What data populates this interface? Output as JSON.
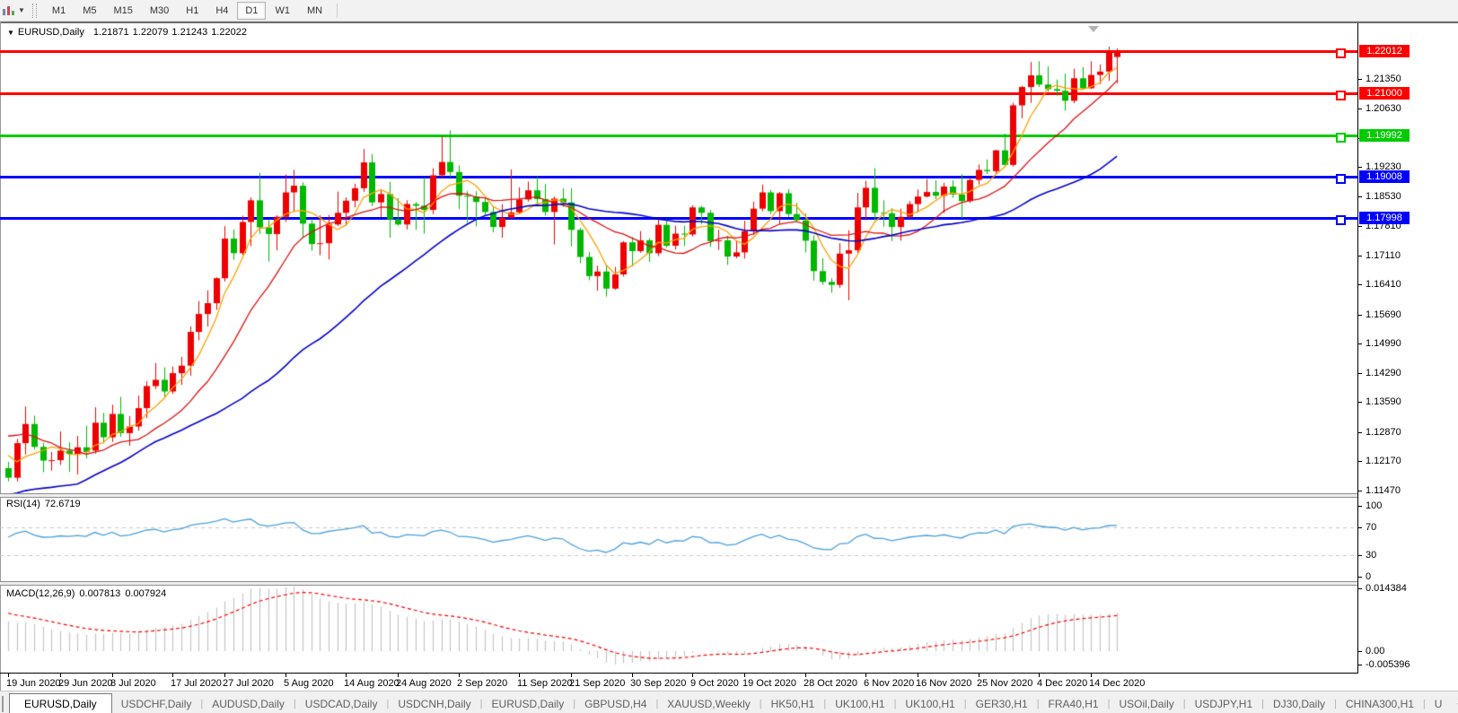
{
  "toolbar": {
    "chart_icon": "chart-icon",
    "timeframes": [
      {
        "label": "M1",
        "active": false
      },
      {
        "label": "M5",
        "active": false
      },
      {
        "label": "M15",
        "active": false
      },
      {
        "label": "M30",
        "active": false
      },
      {
        "label": "H1",
        "active": false
      },
      {
        "label": "H4",
        "active": false
      },
      {
        "label": "D1",
        "active": true
      },
      {
        "label": "W1",
        "active": false
      },
      {
        "label": "MN",
        "active": false
      }
    ]
  },
  "title": {
    "arrow": "▼",
    "symbol": "EURUSD,Daily",
    "open": "1.21871",
    "high": "1.22079",
    "low": "1.21243",
    "close": "1.22022"
  },
  "chart_data": {
    "type": "candlestick",
    "symbol": "EURUSD",
    "timeframe": "Daily",
    "last_ohlc": {
      "open": 1.21871,
      "high": 1.22079,
      "low": 1.21243,
      "close": 1.22022
    },
    "colors": {
      "bull": "#ee0000",
      "bear": "#00b800",
      "ma_fast": "#ffa000",
      "ma_mid": "#dd1111",
      "ma_slow": "#0000cc",
      "rsi": "#4aa0dd",
      "macd_hist": "#c4c4c4",
      "macd_signal": "#ff0000",
      "level_dash": "#c8c8c8",
      "hline_red": "#ff0000",
      "hline_green": "#00cc00",
      "hline_blue": "#0000ff"
    },
    "hlines": [
      {
        "name": "resistance-upper",
        "price": "1.22012",
        "value": 1.22012,
        "color": "#ff0000"
      },
      {
        "name": "resistance-lower",
        "price": "1.21000",
        "value": 1.21,
        "color": "#ff0000"
      },
      {
        "name": "pivot-green",
        "price": "1.19992",
        "value": 1.19992,
        "color": "#00cc00"
      },
      {
        "name": "support-upper",
        "price": "1.19008",
        "value": 1.19008,
        "color": "#0000ff"
      },
      {
        "name": "support-lower",
        "price": "1.17998",
        "value": 1.17998,
        "color": "#0000ff"
      }
    ],
    "price_ticks": [
      "1.21350",
      "1.20630",
      "1.19930",
      "1.19230",
      "1.18530",
      "1.17810",
      "1.17110",
      "1.16410",
      "1.15690",
      "1.14990",
      "1.14290",
      "1.13590",
      "1.12870",
      "1.12170",
      "1.11470"
    ],
    "date_labels": [
      {
        "text": "19 Jun 2020",
        "index": 0
      },
      {
        "text": "29 Jun 2020",
        "index": 6
      },
      {
        "text": "8 Jul 2020",
        "index": 12
      },
      {
        "text": "17 Jul 2020",
        "index": 19
      },
      {
        "text": "27 Jul 2020",
        "index": 25
      },
      {
        "text": "5 Aug 2020",
        "index": 32
      },
      {
        "text": "14 Aug 2020",
        "index": 39
      },
      {
        "text": "24 Aug 2020",
        "index": 45
      },
      {
        "text": "2 Sep 2020",
        "index": 52
      },
      {
        "text": "11 Sep 2020",
        "index": 59
      },
      {
        "text": "21 Sep 2020",
        "index": 65
      },
      {
        "text": "30 Sep 2020",
        "index": 72
      },
      {
        "text": "9 Oct 2020",
        "index": 79
      },
      {
        "text": "19 Oct 2020",
        "index": 85
      },
      {
        "text": "28 Oct 2020",
        "index": 92
      },
      {
        "text": "6 Nov 2020",
        "index": 99
      },
      {
        "text": "16 Nov 2020",
        "index": 105
      },
      {
        "text": "25 Nov 2020",
        "index": 112
      },
      {
        "text": "4 Dec 2020",
        "index": 119
      },
      {
        "text": "14 Dec 2020",
        "index": 125
      }
    ],
    "candles": [
      [
        1.12,
        1.1215,
        1.1168,
        1.1177
      ],
      [
        1.1177,
        1.127,
        1.1168,
        1.126
      ],
      [
        1.126,
        1.1348,
        1.1233,
        1.1306
      ],
      [
        1.1306,
        1.1326,
        1.1245,
        1.1251
      ],
      [
        1.1251,
        1.1261,
        1.119,
        1.1218
      ],
      [
        1.1218,
        1.1239,
        1.1194,
        1.1219
      ],
      [
        1.1219,
        1.1288,
        1.1208,
        1.1242
      ],
      [
        1.1242,
        1.1262,
        1.1191,
        1.1234
      ],
      [
        1.1234,
        1.1277,
        1.1185,
        1.125
      ],
      [
        1.125,
        1.1302,
        1.1223,
        1.1239
      ],
      [
        1.1242,
        1.1346,
        1.1235,
        1.1309
      ],
      [
        1.1309,
        1.1333,
        1.1259,
        1.1274
      ],
      [
        1.1274,
        1.1352,
        1.1263,
        1.133
      ],
      [
        1.133,
        1.1371,
        1.1275,
        1.1284
      ],
      [
        1.1284,
        1.1325,
        1.1254,
        1.13
      ],
      [
        1.13,
        1.1374,
        1.129,
        1.1344
      ],
      [
        1.1344,
        1.1409,
        1.132,
        1.1397
      ],
      [
        1.1397,
        1.1452,
        1.139,
        1.1412
      ],
      [
        1.1412,
        1.1442,
        1.137,
        1.1384
      ],
      [
        1.1384,
        1.1444,
        1.1378,
        1.1428
      ],
      [
        1.1428,
        1.1467,
        1.14,
        1.1446
      ],
      [
        1.1446,
        1.154,
        1.1422,
        1.1527
      ],
      [
        1.1527,
        1.1601,
        1.1507,
        1.157
      ],
      [
        1.157,
        1.1627,
        1.154,
        1.1596
      ],
      [
        1.1596,
        1.1658,
        1.158,
        1.1656
      ],
      [
        1.1656,
        1.1781,
        1.1648,
        1.1751
      ],
      [
        1.1751,
        1.1773,
        1.17,
        1.1716
      ],
      [
        1.1716,
        1.1806,
        1.1712,
        1.1791
      ],
      [
        1.1791,
        1.185,
        1.1733,
        1.1843
      ],
      [
        1.1843,
        1.1909,
        1.1762,
        1.1778
      ],
      [
        1.1778,
        1.1797,
        1.1696,
        1.1762
      ],
      [
        1.1762,
        1.1807,
        1.1723,
        1.1803
      ],
      [
        1.1803,
        1.1905,
        1.1791,
        1.1862
      ],
      [
        1.1862,
        1.1916,
        1.1817,
        1.1878
      ],
      [
        1.1878,
        1.1886,
        1.1754,
        1.1787
      ],
      [
        1.1787,
        1.1798,
        1.1722,
        1.1738
      ],
      [
        1.1738,
        1.1807,
        1.1711,
        1.174
      ],
      [
        1.174,
        1.1808,
        1.1701,
        1.1785
      ],
      [
        1.1785,
        1.1864,
        1.1781,
        1.1813
      ],
      [
        1.1813,
        1.185,
        1.1782,
        1.1842
      ],
      [
        1.1842,
        1.1883,
        1.1826,
        1.1872
      ],
      [
        1.1872,
        1.1966,
        1.1863,
        1.1934
      ],
      [
        1.1934,
        1.1954,
        1.1829,
        1.1838
      ],
      [
        1.1838,
        1.1869,
        1.1802,
        1.1858
      ],
      [
        1.1858,
        1.1887,
        1.1753,
        1.1797
      ],
      [
        1.1797,
        1.1848,
        1.1782,
        1.1785
      ],
      [
        1.1785,
        1.1843,
        1.1773,
        1.1834
      ],
      [
        1.1834,
        1.1839,
        1.1772,
        1.183
      ],
      [
        1.183,
        1.1898,
        1.1763,
        1.182
      ],
      [
        1.182,
        1.192,
        1.181,
        1.1903
      ],
      [
        1.1903,
        1.1997,
        1.1897,
        1.1935
      ],
      [
        1.1935,
        1.2011,
        1.1898,
        1.1911
      ],
      [
        1.1911,
        1.1927,
        1.1822,
        1.1854
      ],
      [
        1.1854,
        1.1865,
        1.1789,
        1.1852
      ],
      [
        1.1852,
        1.1865,
        1.1781,
        1.1839
      ],
      [
        1.1839,
        1.1849,
        1.1805,
        1.1815
      ],
      [
        1.1815,
        1.1827,
        1.1766,
        1.1779
      ],
      [
        1.1779,
        1.1834,
        1.1753,
        1.1801
      ],
      [
        1.1801,
        1.1917,
        1.1799,
        1.1814
      ],
      [
        1.1814,
        1.1874,
        1.1809,
        1.1845
      ],
      [
        1.1845,
        1.1888,
        1.184,
        1.1867
      ],
      [
        1.1867,
        1.19,
        1.1829,
        1.1846
      ],
      [
        1.1846,
        1.1882,
        1.1806,
        1.1815
      ],
      [
        1.1815,
        1.1852,
        1.1737,
        1.1847
      ],
      [
        1.1847,
        1.1872,
        1.1827,
        1.1838
      ],
      [
        1.1838,
        1.1872,
        1.1732,
        1.1772
      ],
      [
        1.1772,
        1.1777,
        1.1692,
        1.1707
      ],
      [
        1.1707,
        1.1719,
        1.1651,
        1.1661
      ],
      [
        1.1661,
        1.1686,
        1.1626,
        1.1672
      ],
      [
        1.1672,
        1.1688,
        1.1612,
        1.1631
      ],
      [
        1.1631,
        1.1683,
        1.1628,
        1.1665
      ],
      [
        1.1665,
        1.1745,
        1.166,
        1.1742
      ],
      [
        1.1742,
        1.1755,
        1.1684,
        1.1721
      ],
      [
        1.1721,
        1.1769,
        1.1717,
        1.1747
      ],
      [
        1.1747,
        1.1752,
        1.1695,
        1.1716
      ],
      [
        1.1716,
        1.1797,
        1.1709,
        1.1784
      ],
      [
        1.1784,
        1.1799,
        1.1729,
        1.1734
      ],
      [
        1.1734,
        1.1782,
        1.1725,
        1.1763
      ],
      [
        1.1763,
        1.1782,
        1.1733,
        1.1761
      ],
      [
        1.1761,
        1.1831,
        1.1756,
        1.1826
      ],
      [
        1.1826,
        1.183,
        1.1785,
        1.1813
      ],
      [
        1.1813,
        1.182,
        1.1731,
        1.1745
      ],
      [
        1.1745,
        1.1772,
        1.1724,
        1.1747
      ],
      [
        1.1747,
        1.1758,
        1.1688,
        1.1708
      ],
      [
        1.1708,
        1.1747,
        1.1704,
        1.1718
      ],
      [
        1.1718,
        1.1794,
        1.1703,
        1.1769
      ],
      [
        1.1769,
        1.184,
        1.176,
        1.1823
      ],
      [
        1.1823,
        1.1881,
        1.1817,
        1.1862
      ],
      [
        1.1862,
        1.1868,
        1.181,
        1.1817
      ],
      [
        1.1817,
        1.1863,
        1.1786,
        1.186
      ],
      [
        1.186,
        1.187,
        1.1803,
        1.181
      ],
      [
        1.181,
        1.1837,
        1.1793,
        1.1795
      ],
      [
        1.1795,
        1.1811,
        1.1718,
        1.1746
      ],
      [
        1.1746,
        1.1759,
        1.165,
        1.1673
      ],
      [
        1.1673,
        1.1704,
        1.164,
        1.1647
      ],
      [
        1.1647,
        1.1656,
        1.1621,
        1.164
      ],
      [
        1.164,
        1.174,
        1.1633,
        1.1715
      ],
      [
        1.1715,
        1.1771,
        1.1603,
        1.1723
      ],
      [
        1.1723,
        1.1861,
        1.1717,
        1.1826
      ],
      [
        1.1826,
        1.189,
        1.1795,
        1.1873
      ],
      [
        1.1873,
        1.192,
        1.1795,
        1.1813
      ],
      [
        1.1813,
        1.1843,
        1.178,
        1.1812
      ],
      [
        1.1812,
        1.1824,
        1.1745,
        1.1779
      ],
      [
        1.1779,
        1.1823,
        1.1746,
        1.1803
      ],
      [
        1.1803,
        1.1841,
        1.1799,
        1.1834
      ],
      [
        1.1834,
        1.1869,
        1.1814,
        1.1852
      ],
      [
        1.1852,
        1.1894,
        1.185,
        1.1863
      ],
      [
        1.1863,
        1.1891,
        1.1846,
        1.1854
      ],
      [
        1.1854,
        1.1885,
        1.1812,
        1.1876
      ],
      [
        1.1876,
        1.1891,
        1.1849,
        1.1857
      ],
      [
        1.1857,
        1.1906,
        1.18,
        1.1841
      ],
      [
        1.1841,
        1.1895,
        1.1837,
        1.1892
      ],
      [
        1.1892,
        1.1929,
        1.1881,
        1.1916
      ],
      [
        1.1916,
        1.1941,
        1.1906,
        1.1913
      ],
      [
        1.1913,
        1.1964,
        1.1907,
        1.1963
      ],
      [
        1.1963,
        1.2003,
        1.1923,
        1.1928
      ],
      [
        1.1928,
        1.2077,
        1.1924,
        1.2071
      ],
      [
        1.2071,
        1.2118,
        1.204,
        1.2115
      ],
      [
        1.2115,
        1.2175,
        1.2077,
        1.2143
      ],
      [
        1.2143,
        1.2177,
        1.2115,
        1.2121
      ],
      [
        1.2121,
        1.2165,
        1.2103,
        1.211
      ],
      [
        1.211,
        1.2133,
        1.2094,
        1.2106
      ],
      [
        1.2106,
        1.2147,
        1.2058,
        1.2082
      ],
      [
        1.2082,
        1.2159,
        1.2076,
        1.2136
      ],
      [
        1.2136,
        1.2163,
        1.2109,
        1.2112
      ],
      [
        1.2112,
        1.2177,
        1.211,
        1.2144
      ],
      [
        1.2144,
        1.2169,
        1.2122,
        1.2152
      ],
      [
        1.2152,
        1.2212,
        1.213,
        1.22
      ],
      [
        1.21871,
        1.22079,
        1.21243,
        1.22022
      ]
    ],
    "moving_averages": [
      {
        "period": 5,
        "color": "#ffa000",
        "name": "ma-fast-orange"
      },
      {
        "period": 13,
        "color": "#dd1111",
        "name": "ma-mid-red"
      },
      {
        "period": 34,
        "color": "#0000cc",
        "name": "ma-slow-blue"
      }
    ],
    "rsi": {
      "label_name": "RSI(14)",
      "value": "72.6719",
      "period": 14,
      "levels": [
        70,
        30
      ],
      "ticks": [
        "100",
        "70",
        "30",
        "0"
      ]
    },
    "macd": {
      "label_name": "MACD(12,26,9)",
      "value_main": "0.007813",
      "value_signal": "0.007924",
      "fast": 12,
      "slow": 26,
      "signal": 9,
      "ticks": [
        {
          "text": "0.014384",
          "v": 0.014384
        },
        {
          "text": "0.00",
          "v": 0
        },
        {
          "text": "-0.005396",
          "v": -0.005396
        }
      ]
    }
  },
  "tabs": {
    "items": [
      {
        "label": "EURUSD,Daily",
        "active": true
      },
      {
        "label": "USDCHF,Daily",
        "active": false
      },
      {
        "label": "AUDUSD,Daily",
        "active": false
      },
      {
        "label": "USDCAD,Daily",
        "active": false
      },
      {
        "label": "USDCNH,Daily",
        "active": false
      },
      {
        "label": "EURUSD,Daily",
        "active": false
      },
      {
        "label": "GBPUSD,H4",
        "active": false
      },
      {
        "label": "XAUUSD,Weekly",
        "active": false
      },
      {
        "label": "HK50,H1",
        "active": false
      },
      {
        "label": "UK100,H1",
        "active": false
      },
      {
        "label": "UK100,H1",
        "active": false
      },
      {
        "label": "GER30,H1",
        "active": false
      },
      {
        "label": "FRA40,H1",
        "active": false
      },
      {
        "label": "USOil,Daily",
        "active": false
      },
      {
        "label": "USDJPY,H1",
        "active": false
      },
      {
        "label": "DJ30,Daily",
        "active": false
      },
      {
        "label": "CHINA300,H1",
        "active": false
      },
      {
        "label": "U",
        "active": false
      }
    ],
    "divider": "|",
    "scroll_left": "◄",
    "scroll_right": "►"
  }
}
